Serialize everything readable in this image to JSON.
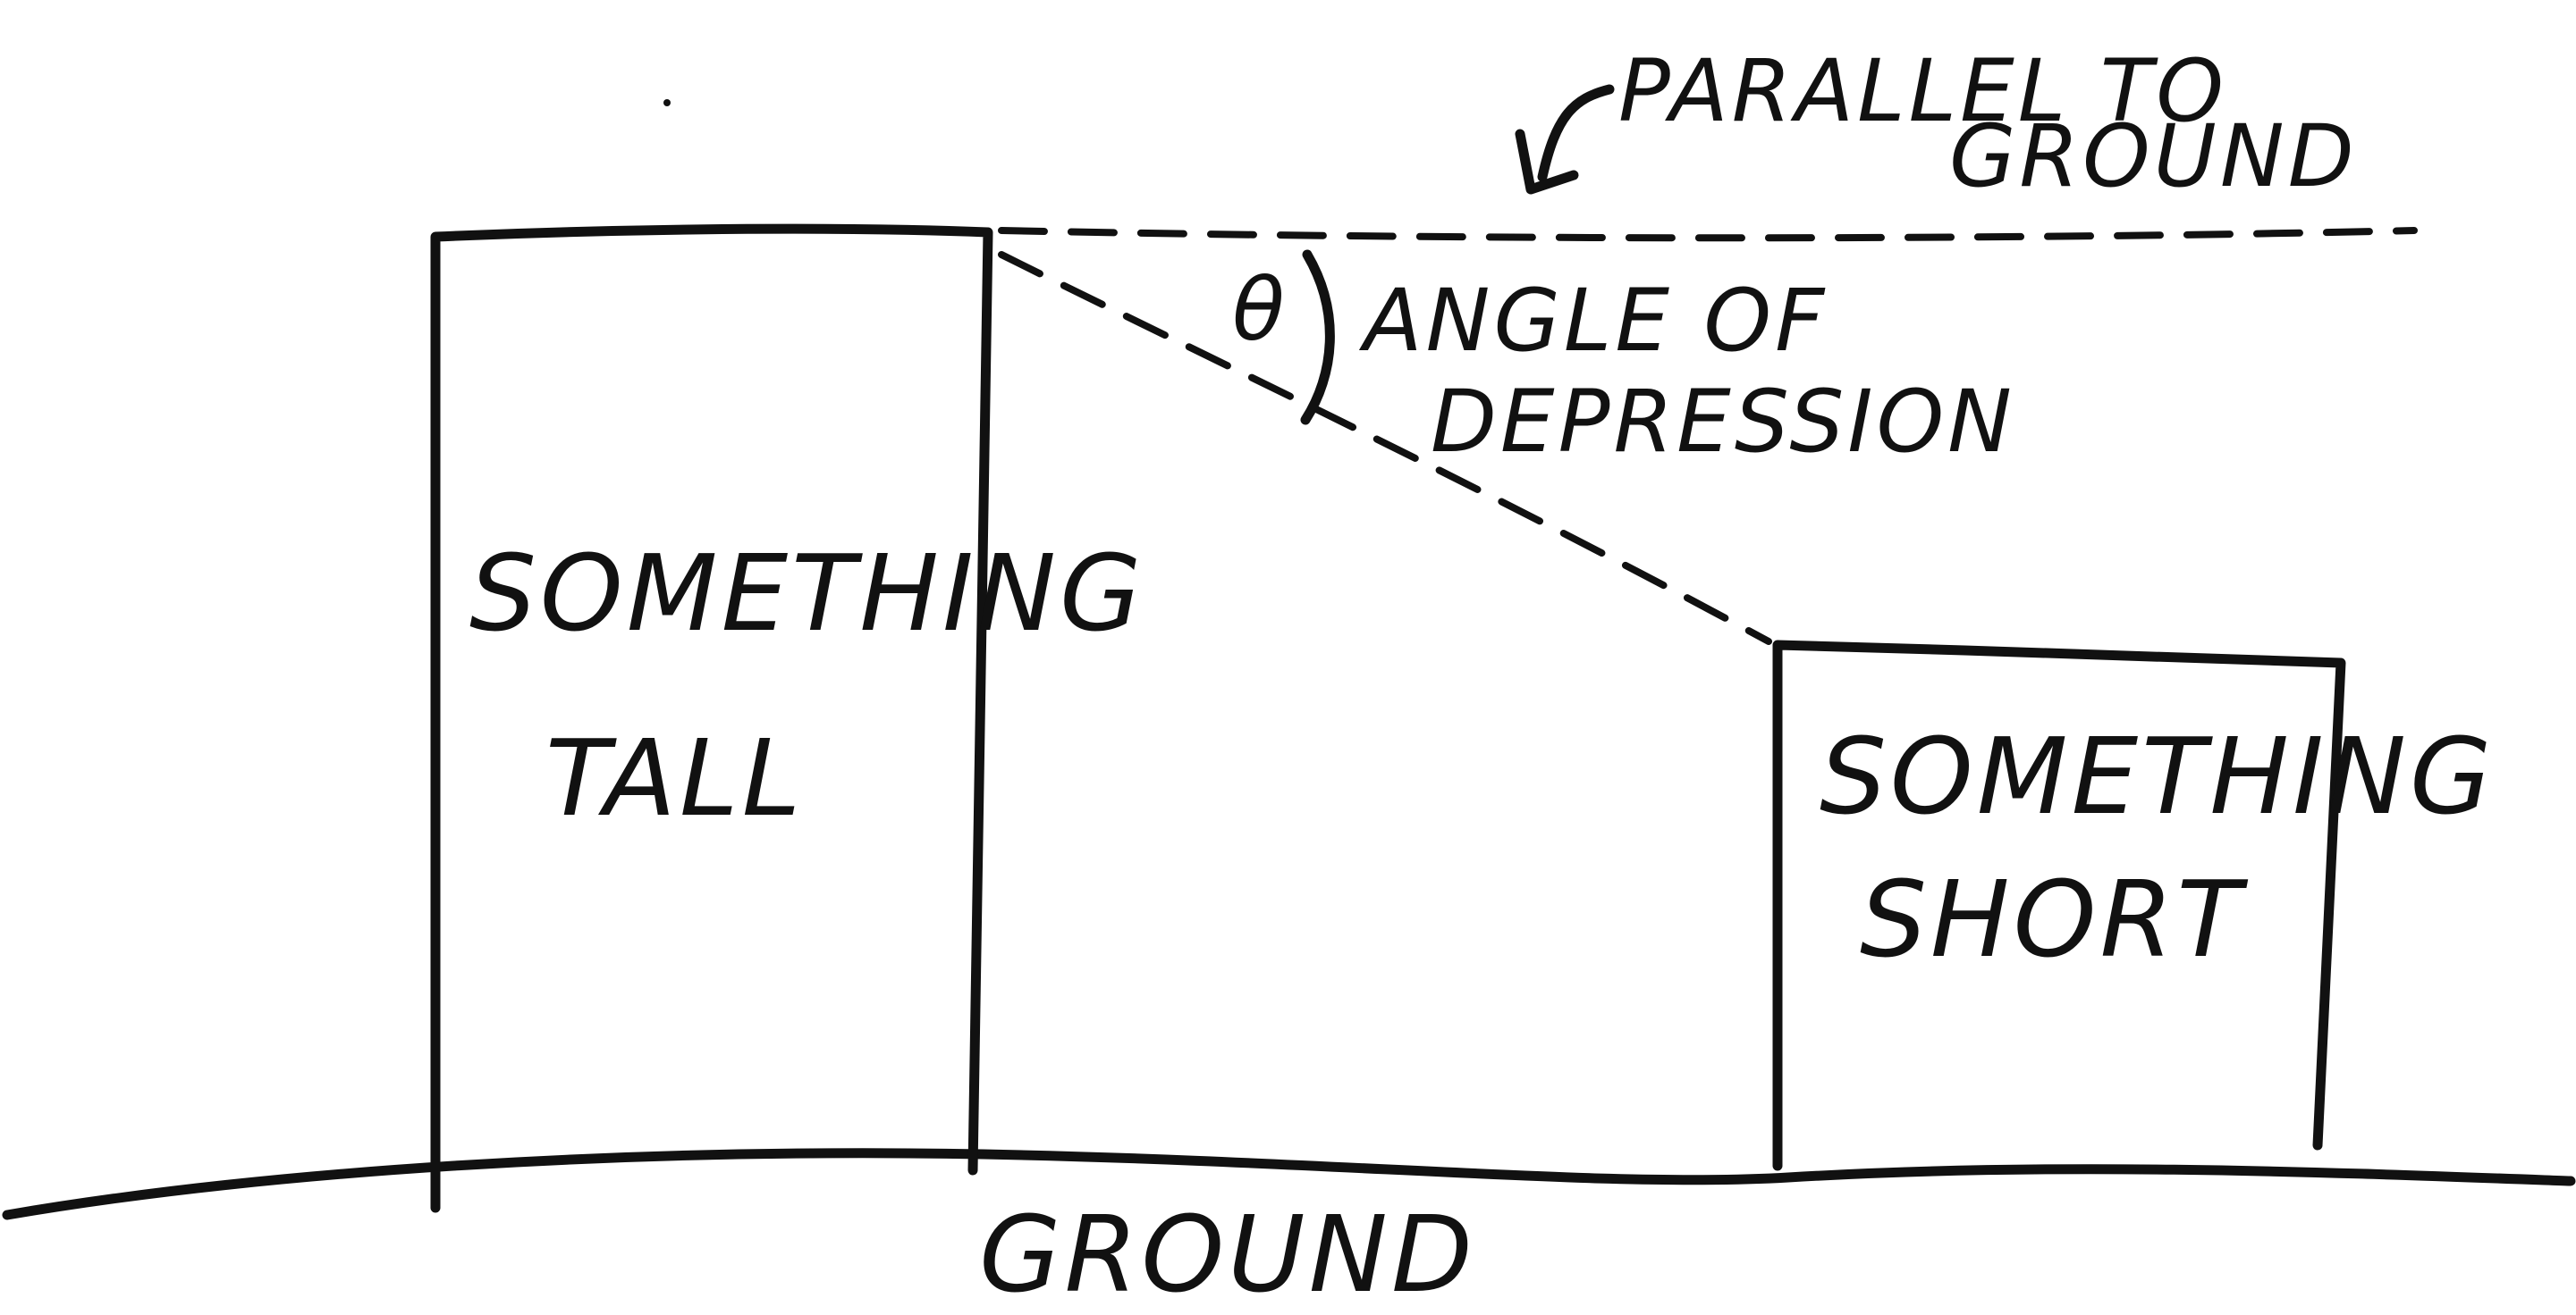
{
  "tall_object": {
    "line1": "SOMETHING",
    "line2": "TALL"
  },
  "short_object": {
    "line1": "SOMETHING",
    "line2": "SHORT"
  },
  "ground_label": "GROUND",
  "parallel_label": {
    "line1": "PARALLEL TO",
    "line2": "GROUND"
  },
  "angle_symbol": "θ",
  "angle_label": {
    "line1": "ANGLE OF",
    "line2": "DEPRESSION"
  },
  "colors": {
    "ink": "#111111",
    "paper": "#ffffff"
  }
}
